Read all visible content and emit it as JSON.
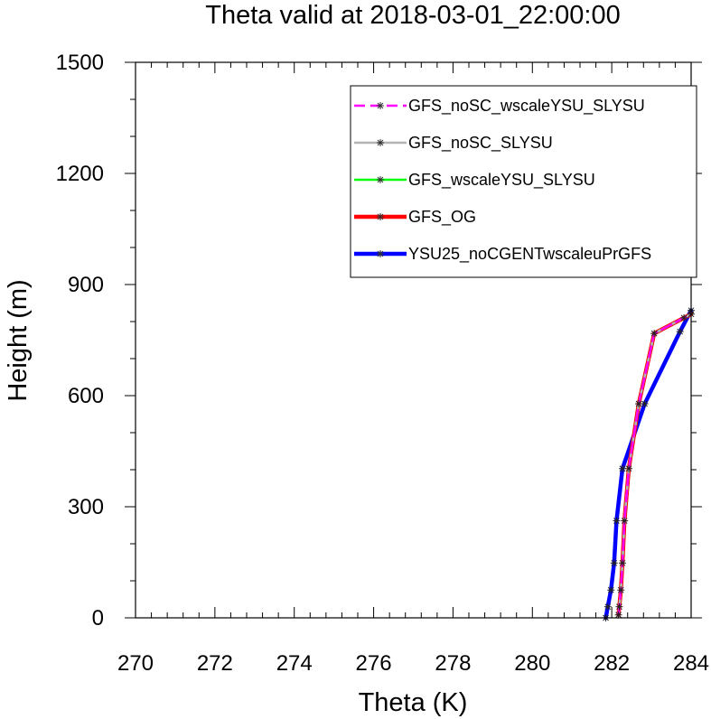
{
  "chart_data": {
    "type": "line",
    "title": "Theta valid at 2018-03-01_22:00:00",
    "xlabel": "Theta (K)",
    "ylabel": "Height (m)",
    "xlim": [
      270,
      284
    ],
    "ylim": [
      0,
      1500
    ],
    "xticks": [
      270,
      272,
      274,
      276,
      278,
      280,
      282,
      284
    ],
    "yticks": [
      0,
      300,
      600,
      900,
      1200,
      1500
    ],
    "grid": false,
    "legend_position": "top-right",
    "series": [
      {
        "name": "GFS_noSC_wscaleYSU_SLYSU",
        "color": "#ff00ff",
        "dash": "dashed",
        "x": [
          282.17,
          282.19,
          282.23,
          282.27,
          282.32,
          282.43,
          282.68,
          283.07,
          283.82,
          284.0
        ],
        "y": [
          8,
          30,
          75,
          148,
          262,
          403,
          578,
          768,
          810,
          820
        ]
      },
      {
        "name": "GFS_noSC_SLYSU",
        "color": "#b4b4b4",
        "dash": "solid",
        "x": [
          282.17,
          282.19,
          282.23,
          282.27,
          282.32,
          282.43,
          282.68,
          283.07,
          283.82,
          284.0
        ],
        "y": [
          8,
          30,
          75,
          148,
          262,
          403,
          578,
          768,
          810,
          820
        ]
      },
      {
        "name": "GFS_wscaleYSU_SLYSU",
        "color": "#00ff00",
        "dash": "solid",
        "x": [
          282.17,
          282.19,
          282.23,
          282.27,
          282.32,
          282.43,
          282.68,
          283.07,
          283.82,
          284.0
        ],
        "y": [
          8,
          30,
          75,
          148,
          262,
          403,
          578,
          768,
          810,
          820
        ]
      },
      {
        "name": "GFS_OG",
        "color": "#ff0000",
        "dash": "solid",
        "x": [
          282.17,
          282.19,
          282.23,
          282.27,
          282.32,
          282.43,
          282.68,
          283.07,
          283.82,
          284.0
        ],
        "y": [
          8,
          30,
          75,
          148,
          262,
          403,
          578,
          768,
          810,
          820
        ]
      },
      {
        "name": "YSU25_noCGENTwscaleuPrGFS",
        "color": "#0000ff",
        "dash": "solid",
        "x": [
          281.85,
          281.9,
          281.98,
          282.06,
          282.12,
          282.27,
          282.83,
          283.72,
          284.0
        ],
        "y": [
          0,
          30,
          75,
          148,
          262,
          403,
          578,
          773,
          830
        ]
      }
    ]
  }
}
